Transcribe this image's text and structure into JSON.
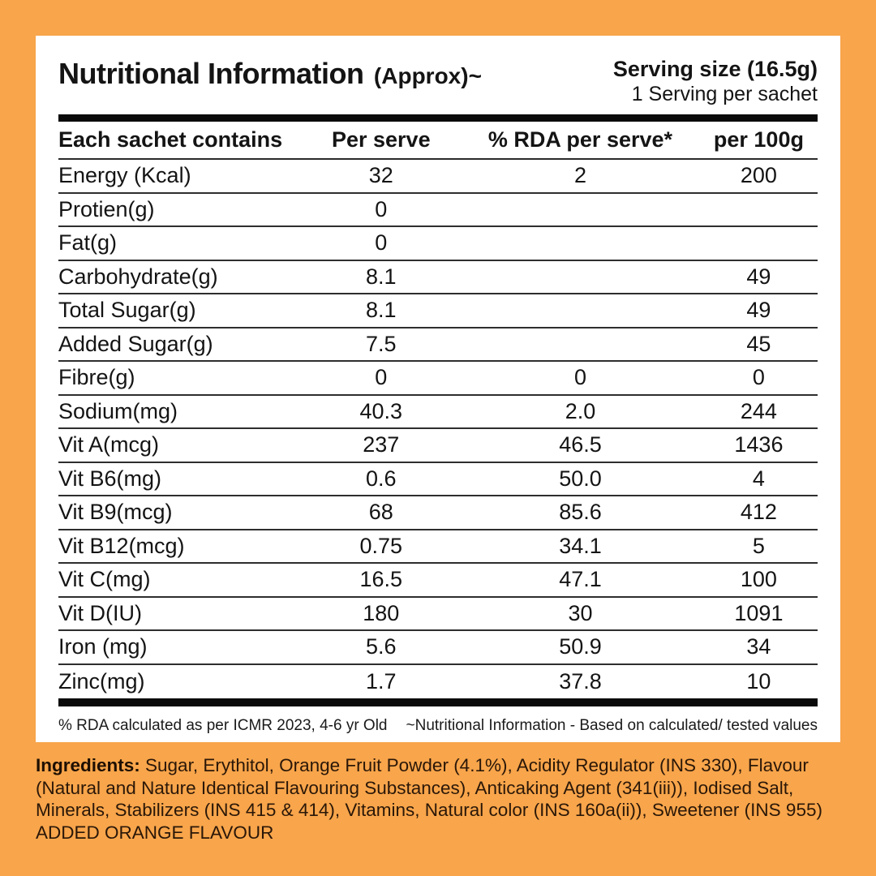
{
  "page": {
    "background_color": "#F8A54B",
    "card_color": "#FFFFFF"
  },
  "header": {
    "title": "Nutritional Information",
    "title_suffix": "(Approx)~",
    "serving_size": "Serving size (16.5g)",
    "serving_per_sachet": "1 Serving per sachet"
  },
  "table": {
    "columns": [
      "Each sachet contains",
      "Per serve",
      "% RDA per serve*",
      "per 100g"
    ],
    "rows": [
      {
        "label": "Energy (Kcal)",
        "per_serve": "32",
        "rda_per_serve": "2",
        "per_100g": "200"
      },
      {
        "label": "Protien(g)",
        "per_serve": "0",
        "rda_per_serve": "",
        "per_100g": ""
      },
      {
        "label": "Fat(g)",
        "per_serve": "0",
        "rda_per_serve": "",
        "per_100g": ""
      },
      {
        "label": "Carbohydrate(g)",
        "per_serve": "8.1",
        "rda_per_serve": "",
        "per_100g": "49"
      },
      {
        "label": "Total Sugar(g)",
        "per_serve": "8.1",
        "rda_per_serve": "",
        "per_100g": "49"
      },
      {
        "label": "Added Sugar(g)",
        "per_serve": "7.5",
        "rda_per_serve": "",
        "per_100g": "45"
      },
      {
        "label": "Fibre(g)",
        "per_serve": "0",
        "rda_per_serve": "0",
        "per_100g": "0"
      },
      {
        "label": "Sodium(mg)",
        "per_serve": "40.3",
        "rda_per_serve": "2.0",
        "per_100g": "244"
      },
      {
        "label": "Vit A(mcg)",
        "per_serve": "237",
        "rda_per_serve": "46.5",
        "per_100g": "1436"
      },
      {
        "label": "Vit B6(mg)",
        "per_serve": "0.6",
        "rda_per_serve": "50.0",
        "per_100g": "4"
      },
      {
        "label": "Vit B9(mcg)",
        "per_serve": "68",
        "rda_per_serve": "85.6",
        "per_100g": "412"
      },
      {
        "label": "Vit B12(mcg)",
        "per_serve": "0.75",
        "rda_per_serve": "34.1",
        "per_100g": "5"
      },
      {
        "label": "Vit C(mg)",
        "per_serve": "16.5",
        "rda_per_serve": "47.1",
        "per_100g": "100"
      },
      {
        "label": "Vit D(IU)",
        "per_serve": "180",
        "rda_per_serve": "30",
        "per_100g": "1091"
      },
      {
        "label": "Iron (mg)",
        "per_serve": "5.6",
        "rda_per_serve": "50.9",
        "per_100g": "34"
      },
      {
        "label": "Zinc(mg)",
        "per_serve": "1.7",
        "rda_per_serve": "37.8",
        "per_100g": "10"
      }
    ]
  },
  "footnotes": {
    "left": "% RDA calculated as per ICMR 2023, 4-6 yr Old",
    "right": "~Nutritional Information - Based on calculated/ tested values"
  },
  "ingredients": {
    "label": "Ingredients:",
    "text": " Sugar, Erythitol, Orange Fruit Powder (4.1%), Acidity Regulator (INS 330), Flavour (Natural and Nature Identical Flavouring Substances), Anticaking Agent (341(iii)), Iodised Salt, Minerals, Stabilizers (INS 415 & 414), Vitamins, Natural color (INS 160a(ii)), Sweetener (INS 955) ADDED ORANGE FLAVOUR"
  }
}
